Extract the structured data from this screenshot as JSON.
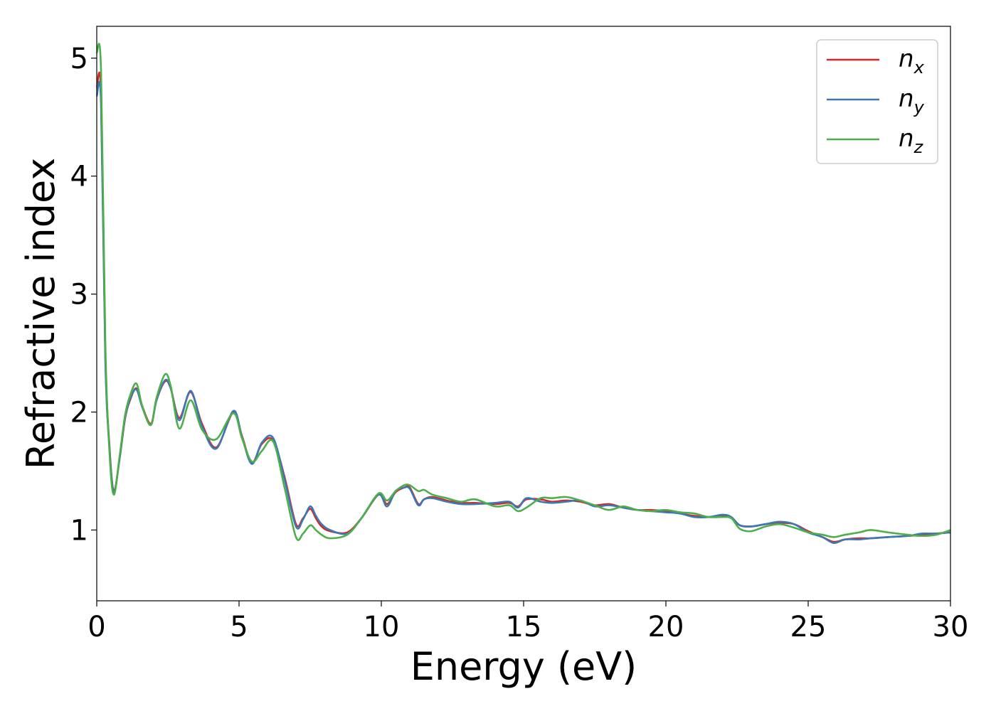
{
  "chart_data": {
    "type": "line",
    "xlabel": "Energy (eV)",
    "ylabel": "Refractive index",
    "xlim": [
      0,
      30
    ],
    "ylim": [
      0.4,
      5.27
    ],
    "xticks": [
      0,
      5,
      10,
      15,
      20,
      25,
      30
    ],
    "yticks": [
      1,
      2,
      3,
      4,
      5
    ],
    "grid": false,
    "legend_position": "top-right",
    "colors": {
      "nx": "#d62728",
      "ny": "#3b78b5",
      "nz": "#4daf4a"
    },
    "legend": [
      {
        "base": "n",
        "sub": "x",
        "color": "#d62728"
      },
      {
        "base": "n",
        "sub": "y",
        "color": "#3b78b5"
      },
      {
        "base": "n",
        "sub": "z",
        "color": "#4daf4a"
      }
    ],
    "series": [
      {
        "key": "nx",
        "x": [
          0,
          0.15,
          0.3,
          0.45,
          0.6,
          0.8,
          1.0,
          1.2,
          1.4,
          1.6,
          1.9,
          2.1,
          2.4,
          2.6,
          2.9,
          3.3,
          3.7,
          4.2,
          4.8,
          5.1,
          5.45,
          5.8,
          6.2,
          6.6,
          7.0,
          7.25,
          7.5,
          7.7,
          7.9,
          8.2,
          8.8,
          9.3,
          9.9,
          10.2,
          10.5,
          10.8,
          11.0,
          11.3,
          11.5,
          11.8,
          12.3,
          12.8,
          13.3,
          14.0,
          14.5,
          14.8,
          15.1,
          15.6,
          16.0,
          16.5,
          17.0,
          17.5,
          18.0,
          18.5,
          19.0,
          19.5,
          20.0,
          20.5,
          21.0,
          21.5,
          22.0,
          22.3,
          22.6,
          23.0,
          23.5,
          24.0,
          24.5,
          25.0,
          25.5,
          25.9,
          26.3,
          26.8,
          27.2,
          27.8,
          28.5,
          29.0,
          29.5,
          30.0
        ],
        "values": [
          4.75,
          4.7,
          2.5,
          1.7,
          1.33,
          1.6,
          1.95,
          2.12,
          2.2,
          2.05,
          1.9,
          2.1,
          2.26,
          2.2,
          1.95,
          2.17,
          1.9,
          1.7,
          2.0,
          1.8,
          1.57,
          1.73,
          1.76,
          1.45,
          1.05,
          1.1,
          1.18,
          1.1,
          1.03,
          0.99,
          0.98,
          1.1,
          1.3,
          1.22,
          1.32,
          1.36,
          1.36,
          1.22,
          1.26,
          1.28,
          1.25,
          1.23,
          1.23,
          1.22,
          1.23,
          1.2,
          1.26,
          1.26,
          1.24,
          1.25,
          1.24,
          1.21,
          1.22,
          1.19,
          1.17,
          1.17,
          1.16,
          1.14,
          1.12,
          1.11,
          1.12,
          1.1,
          1.04,
          1.03,
          1.05,
          1.06,
          1.05,
          0.99,
          0.94,
          0.9,
          0.92,
          0.93,
          0.93,
          0.94,
          0.95,
          0.96,
          0.97,
          0.98
        ]
      },
      {
        "key": "ny",
        "x": [
          0,
          0.15,
          0.3,
          0.45,
          0.6,
          0.8,
          1.0,
          1.2,
          1.4,
          1.6,
          1.9,
          2.1,
          2.4,
          2.6,
          2.9,
          3.3,
          3.7,
          4.2,
          4.8,
          5.1,
          5.45,
          5.8,
          6.2,
          6.6,
          7.0,
          7.25,
          7.5,
          7.7,
          7.9,
          8.2,
          8.8,
          9.3,
          9.9,
          10.2,
          10.5,
          10.8,
          11.0,
          11.3,
          11.5,
          11.8,
          12.3,
          12.8,
          13.3,
          14.0,
          14.5,
          14.8,
          15.1,
          15.6,
          16.0,
          16.5,
          17.0,
          17.5,
          18.0,
          18.5,
          19.0,
          19.5,
          20.0,
          20.5,
          21.0,
          21.5,
          22.0,
          22.3,
          22.6,
          23.0,
          23.5,
          24.0,
          24.5,
          25.0,
          25.5,
          25.9,
          26.3,
          26.8,
          27.2,
          27.8,
          28.5,
          29.0,
          29.5,
          30.0
        ],
        "values": [
          4.68,
          4.62,
          2.45,
          1.68,
          1.32,
          1.6,
          1.96,
          2.13,
          2.19,
          2.04,
          1.89,
          2.1,
          2.27,
          2.2,
          1.93,
          2.18,
          1.88,
          1.69,
          2.01,
          1.79,
          1.56,
          1.74,
          1.78,
          1.43,
          1.03,
          1.09,
          1.2,
          1.12,
          1.05,
          1.0,
          0.97,
          1.1,
          1.3,
          1.2,
          1.33,
          1.36,
          1.35,
          1.21,
          1.26,
          1.27,
          1.24,
          1.22,
          1.22,
          1.23,
          1.24,
          1.19,
          1.27,
          1.24,
          1.23,
          1.24,
          1.25,
          1.2,
          1.21,
          1.19,
          1.17,
          1.16,
          1.15,
          1.14,
          1.11,
          1.11,
          1.13,
          1.11,
          1.04,
          1.03,
          1.05,
          1.07,
          1.05,
          0.98,
          0.94,
          0.89,
          0.92,
          0.92,
          0.93,
          0.94,
          0.95,
          0.97,
          0.97,
          0.98
        ]
      },
      {
        "key": "nz",
        "x": [
          0,
          0.15,
          0.3,
          0.45,
          0.6,
          0.8,
          1.0,
          1.2,
          1.4,
          1.6,
          1.9,
          2.1,
          2.4,
          2.6,
          2.9,
          3.3,
          3.7,
          4.2,
          4.8,
          5.1,
          5.45,
          5.8,
          6.2,
          6.6,
          7.0,
          7.25,
          7.5,
          7.7,
          7.9,
          8.2,
          8.8,
          9.3,
          9.9,
          10.2,
          10.5,
          10.8,
          11.0,
          11.3,
          11.5,
          11.8,
          12.3,
          12.8,
          13.3,
          14.0,
          14.5,
          14.8,
          15.1,
          15.6,
          16.0,
          16.5,
          17.0,
          17.5,
          18.0,
          18.5,
          19.0,
          19.5,
          20.0,
          20.5,
          21.0,
          21.5,
          22.0,
          22.3,
          22.6,
          23.0,
          23.5,
          24.0,
          24.5,
          25.0,
          25.5,
          25.9,
          26.3,
          26.8,
          27.2,
          27.8,
          28.5,
          29.0,
          29.5,
          30.0
        ],
        "values": [
          5.05,
          4.9,
          2.6,
          1.65,
          1.3,
          1.62,
          1.98,
          2.16,
          2.24,
          2.05,
          1.89,
          2.12,
          2.32,
          2.22,
          1.86,
          2.1,
          1.85,
          1.77,
          1.99,
          1.78,
          1.58,
          1.67,
          1.75,
          1.36,
          0.94,
          0.97,
          1.04,
          1.0,
          0.96,
          0.93,
          0.96,
          1.1,
          1.31,
          1.25,
          1.33,
          1.38,
          1.38,
          1.33,
          1.34,
          1.3,
          1.27,
          1.24,
          1.26,
          1.2,
          1.21,
          1.16,
          1.19,
          1.27,
          1.27,
          1.28,
          1.25,
          1.21,
          1.17,
          1.2,
          1.17,
          1.16,
          1.17,
          1.15,
          1.14,
          1.11,
          1.11,
          1.1,
          1.01,
          0.99,
          1.03,
          1.05,
          1.02,
          0.98,
          0.96,
          0.94,
          0.96,
          0.98,
          1.0,
          0.98,
          0.96,
          0.95,
          0.96,
          1.0
        ]
      }
    ]
  }
}
